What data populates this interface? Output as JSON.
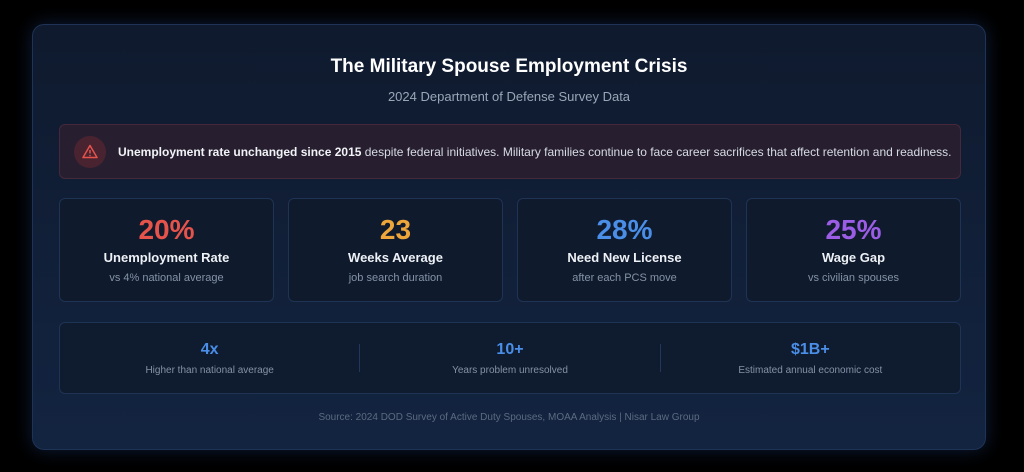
{
  "header": {
    "title": "The Military Spouse Employment Crisis",
    "subtitle": "2024 Department of Defense Survey Data"
  },
  "alert": {
    "icon": "warning-triangle-icon",
    "bold": "Unemployment rate unchanged since 2015",
    "text": " despite federal initiatives. Military families continue to face career sacrifices that affect retention and readiness."
  },
  "cards": [
    {
      "value": "20%",
      "label": "Unemployment Rate",
      "sub": "vs 4% national average",
      "color": "#e5534b"
    },
    {
      "value": "23",
      "label": "Weeks Average",
      "sub": "job search duration",
      "color": "#eea63a"
    },
    {
      "value": "28%",
      "label": "Need New License",
      "sub": "after each PCS move",
      "color": "#4a8ee8"
    },
    {
      "value": "25%",
      "label": "Wage Gap",
      "sub": "vs civilian spouses",
      "color": "#9b5de5"
    }
  ],
  "stats": [
    {
      "value": "4x",
      "desc": "Higher than national average"
    },
    {
      "value": "10+",
      "desc": "Years problem unresolved"
    },
    {
      "value": "$1B+",
      "desc": "Estimated annual economic cost"
    }
  ],
  "source": "Source: 2024 DOD Survey of Active Duty Spouses, MOAA Analysis | Nisar Law Group"
}
